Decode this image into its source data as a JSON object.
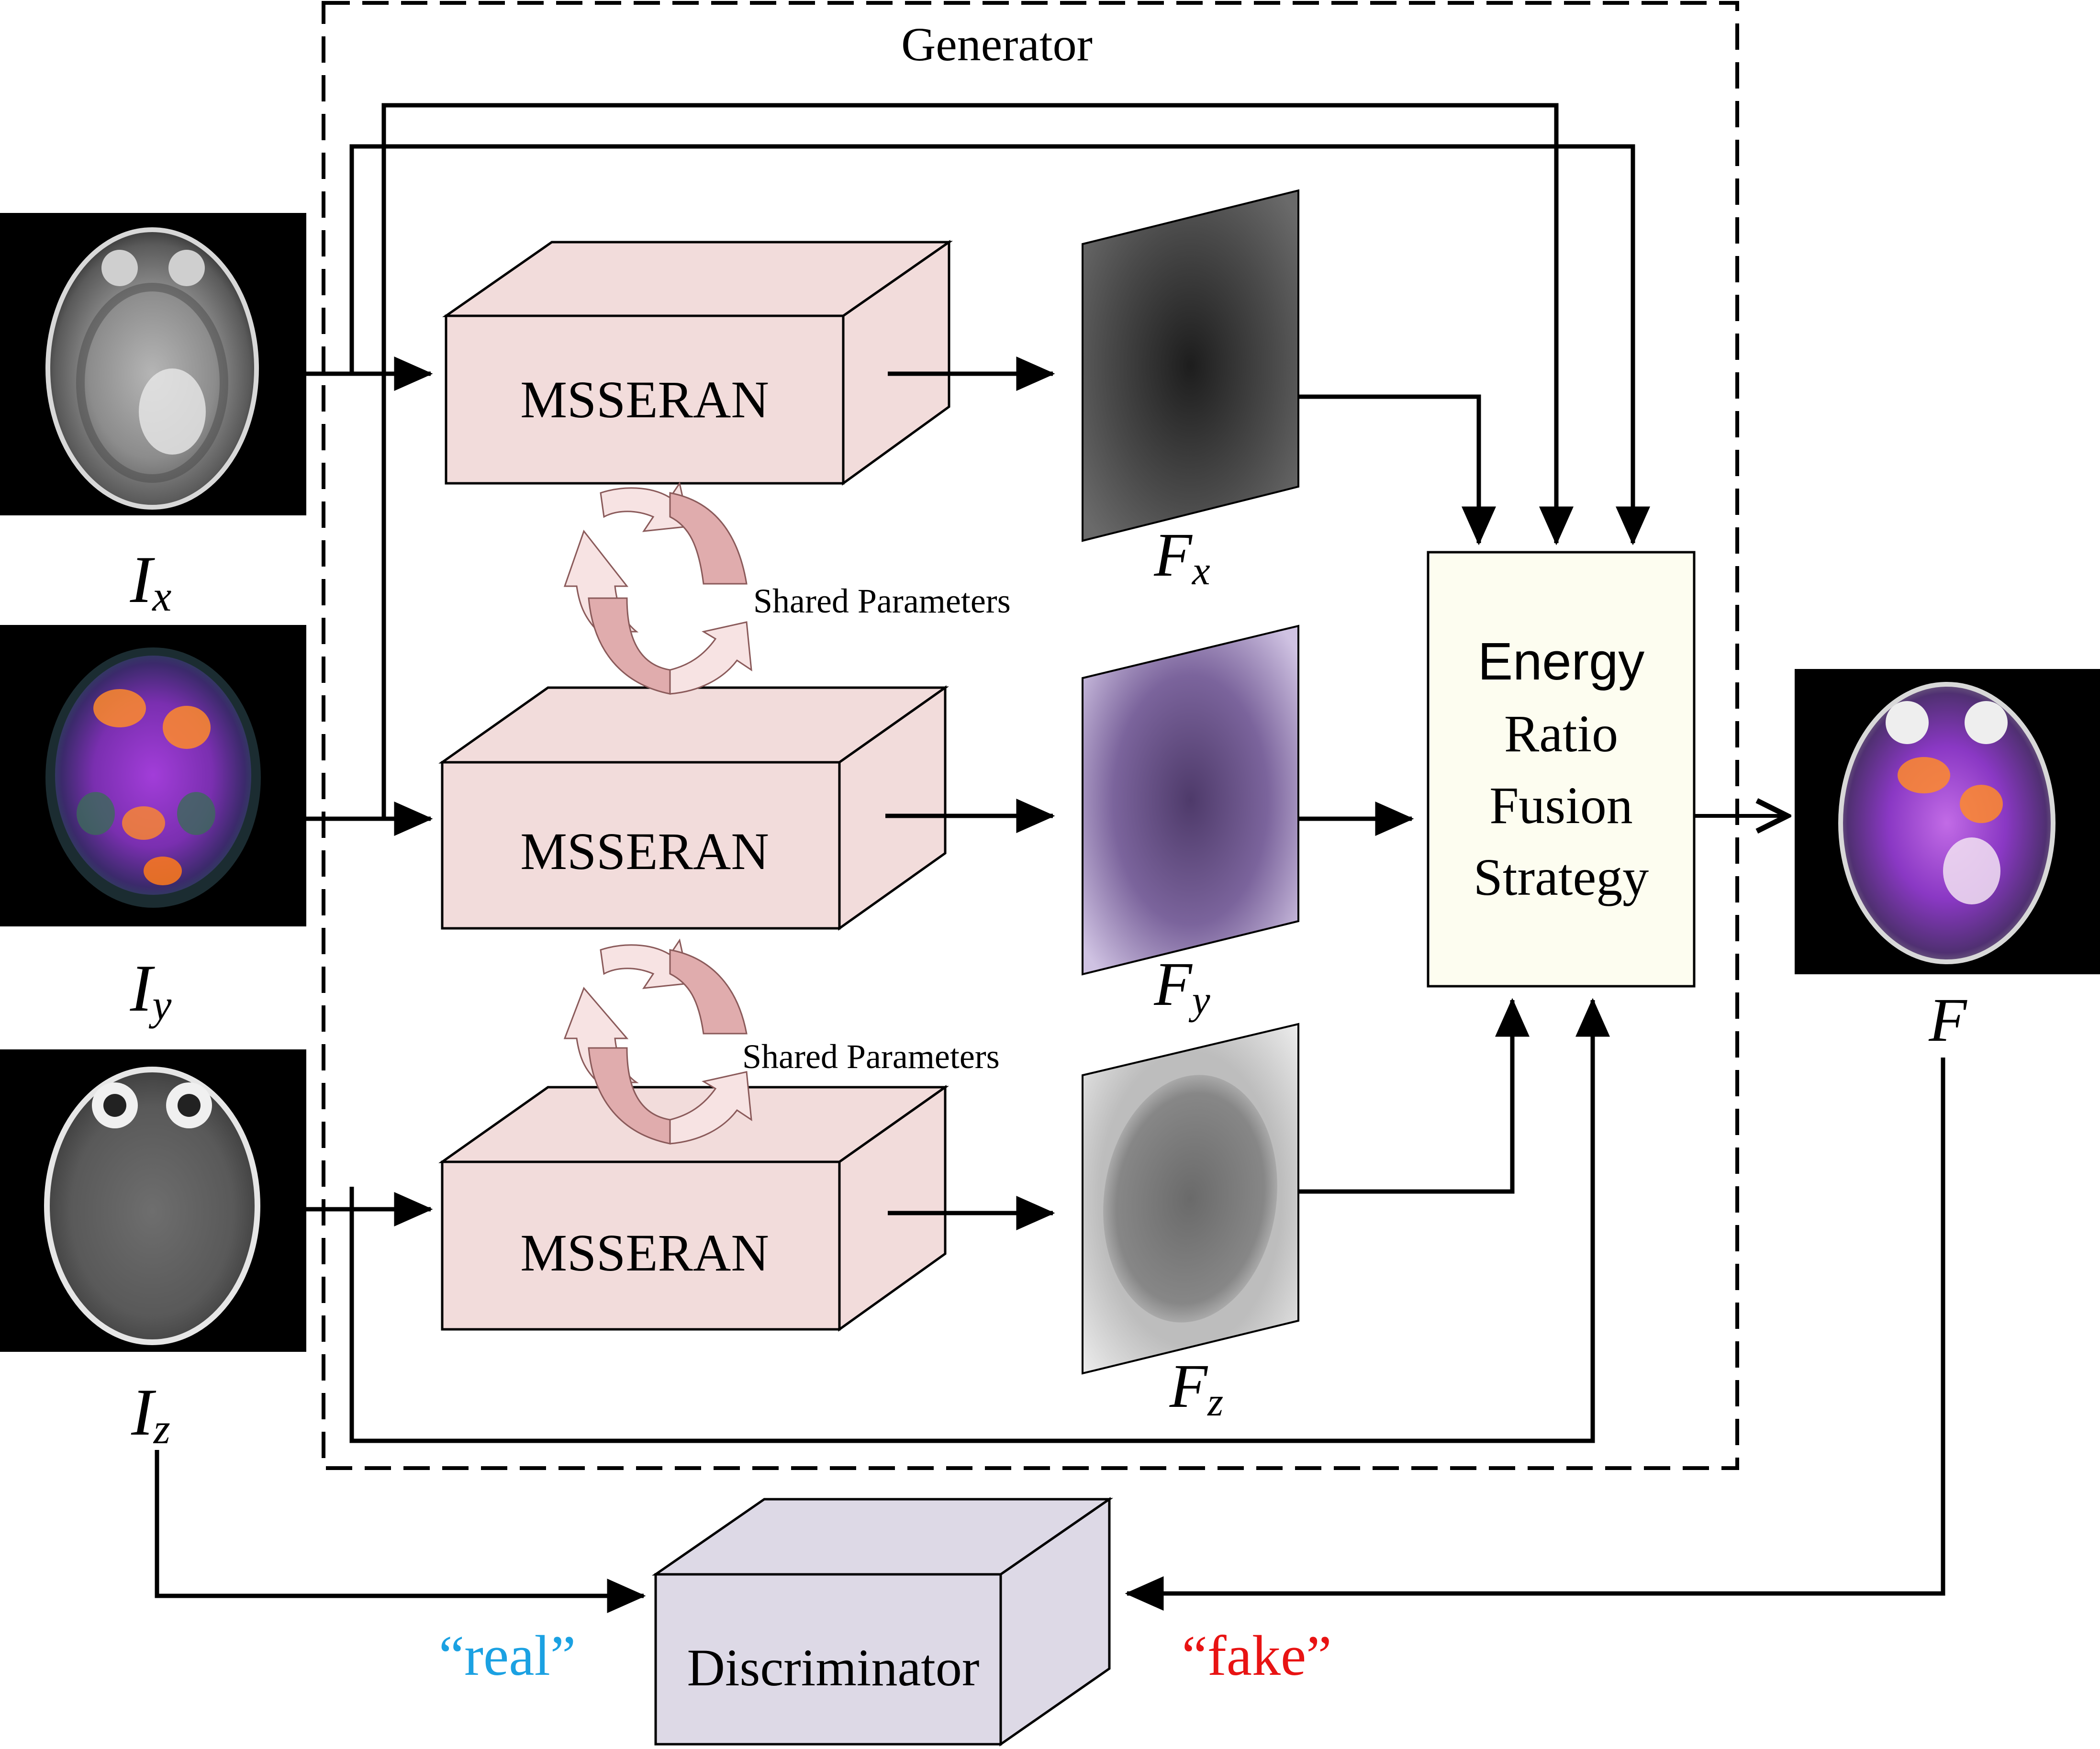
{
  "generator": {
    "title": "Generator"
  },
  "inputs": [
    {
      "id": "x",
      "sym": "I",
      "sub": "x"
    },
    {
      "id": "y",
      "sym": "I",
      "sub": "y"
    },
    {
      "id": "z",
      "sym": "I",
      "sub": "z"
    }
  ],
  "modules": [
    {
      "label": "MSSERAN"
    },
    {
      "label": "MSSERAN"
    },
    {
      "label": "MSSERAN"
    }
  ],
  "features": [
    {
      "sym": "F",
      "sub": "x"
    },
    {
      "sym": "F",
      "sub": "y"
    },
    {
      "sym": "F",
      "sub": "z"
    }
  ],
  "shared": [
    {
      "label": "Shared Parameters"
    },
    {
      "label": "Shared Parameters"
    }
  ],
  "fusion": {
    "lines": [
      "Energy",
      "Ratio",
      "Fusion",
      "Strategy"
    ]
  },
  "output": {
    "label": "F"
  },
  "discriminator": {
    "label": "Discriminator",
    "real": "“real”",
    "fake": "“fake”"
  },
  "colors": {
    "msseran_fill": "#f2dcdb",
    "fusion_fill": "#fdfdf0",
    "discriminator_fill": "#ddd9e6",
    "real_text": "#1ba1e2",
    "fake_text": "#e81313",
    "shared_arrow": "#e0acad"
  }
}
